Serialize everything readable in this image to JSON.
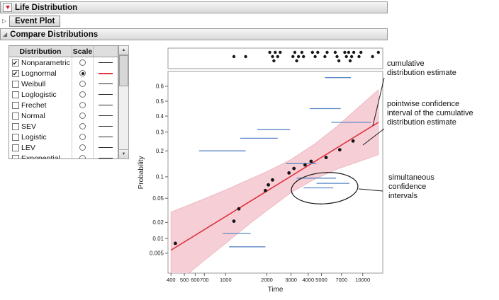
{
  "icons": {
    "red_triangle_menu": "red-triangle",
    "disclosure_open": "◢",
    "disclosure_closed": "▷",
    "checkbox_check": "✔",
    "scrollbar_up": "▲",
    "scrollbar_down": "▼"
  },
  "colors": {
    "header_gradient_top": "#f6f6f6",
    "header_gradient_bottom": "#d8d8d8",
    "fit_line_red": "#e03540",
    "band_pink": "#f6cfd6",
    "interval_blue": "#5b87c5",
    "red_triangle": "#cf1f25"
  },
  "window": {
    "outline_headers": [
      {
        "title": "Life Distribution",
        "state": "open"
      },
      {
        "title": "Event Plot",
        "state": "closed"
      },
      {
        "title": "Compare Distributions",
        "state": "open"
      }
    ]
  },
  "distribution_table": {
    "column_headers": [
      "Distribution",
      "Scale"
    ],
    "rows": [
      {
        "label": "Nonparametric",
        "checked": true,
        "scale_selected": false,
        "swatch_color": "#2b2b2b"
      },
      {
        "label": "Lognormal",
        "checked": true,
        "scale_selected": true,
        "swatch_color": "#e03540"
      },
      {
        "label": "Weibull",
        "checked": false,
        "scale_selected": false,
        "swatch_color": "#2b2b2b"
      },
      {
        "label": "Loglogistic",
        "checked": false,
        "scale_selected": false,
        "swatch_color": "#2b2b2b"
      },
      {
        "label": "Frechet",
        "checked": false,
        "scale_selected": false,
        "swatch_color": "#2b2b2b"
      },
      {
        "label": "Normal",
        "checked": false,
        "scale_selected": false,
        "swatch_color": "#2b2b2b"
      },
      {
        "label": "SEV",
        "checked": false,
        "scale_selected": false,
        "swatch_color": "#2b2b2b"
      },
      {
        "label": "Logistic",
        "checked": false,
        "scale_selected": false,
        "swatch_color": "#2b2b2b"
      },
      {
        "label": "LEV",
        "checked": false,
        "scale_selected": false,
        "swatch_color": "#2b2b2b"
      },
      {
        "label": "Exponential",
        "checked": false,
        "scale_selected": false,
        "swatch_color": "#2b2b2b"
      }
    ]
  },
  "chart_data": {
    "type": "scatter",
    "subtype": "probability-plot-with-event-strip",
    "title": "",
    "xlabel": "Time",
    "ylabel": "Probability",
    "x_scale": "log",
    "y_scale": "normal-quantile",
    "x_range": [
      380,
      14000
    ],
    "x_ticks": [
      400,
      500,
      600,
      700,
      1000,
      2000,
      3000,
      4000,
      5000,
      7000,
      10000
    ],
    "y_ticks": [
      "0.6",
      "0.5",
      "0.4",
      "0.3",
      "0.2",
      "0.1",
      "0.05",
      "0.02",
      "0.01",
      "0.005"
    ],
    "fit_line": {
      "label": "Lognormal cumulative distribution estimate",
      "color": "#e03540",
      "points": [
        [
          400,
          0.0058
        ],
        [
          13000,
          0.36
        ]
      ]
    },
    "confidence_band": {
      "label": "pointwise confidence interval of the cumulative distribution estimate",
      "color": "#f6cfd6",
      "upper": [
        [
          400,
          0.03
        ],
        [
          700,
          0.049
        ],
        [
          1000,
          0.066
        ],
        [
          1500,
          0.093
        ],
        [
          2000,
          0.116
        ],
        [
          3000,
          0.161
        ],
        [
          4500,
          0.236
        ],
        [
          6500,
          0.334
        ],
        [
          9000,
          0.446
        ],
        [
          13000,
          0.576
        ]
      ],
      "lower": [
        [
          400,
          0.0008
        ],
        [
          700,
          0.0035
        ],
        [
          1000,
          0.008
        ],
        [
          1500,
          0.019
        ],
        [
          2000,
          0.032
        ],
        [
          3000,
          0.061
        ],
        [
          4500,
          0.094
        ],
        [
          6500,
          0.125
        ],
        [
          9000,
          0.15
        ],
        [
          13000,
          0.182
        ]
      ]
    },
    "interval_color": "#5b87c5",
    "simultaneous_intervals": [
      [
        640,
        1400,
        0.2
      ],
      [
        1280,
        2400,
        0.265
      ],
      [
        1700,
        2950,
        0.315
      ],
      [
        2750,
        4600,
        0.145
      ],
      [
        5300,
        8200,
        0.655
      ],
      [
        4100,
        6900,
        0.45
      ],
      [
        5900,
        11500,
        0.36
      ],
      [
        3300,
        6400,
        0.096
      ],
      [
        4600,
        8000,
        0.082
      ],
      [
        3700,
        6100,
        0.071
      ],
      [
        950,
        1520,
        0.0125
      ],
      [
        1060,
        1950,
        0.0068
      ]
    ],
    "nonparametric_points": [
      [
        430,
        0.008
      ],
      [
        1150,
        0.021
      ],
      [
        1250,
        0.034
      ],
      [
        1950,
        0.065
      ],
      [
        2050,
        0.078
      ],
      [
        2200,
        0.091
      ],
      [
        2900,
        0.112
      ],
      [
        3150,
        0.127
      ],
      [
        3800,
        0.14
      ],
      [
        4200,
        0.154
      ],
      [
        5400,
        0.17
      ],
      [
        6800,
        0.205
      ],
      [
        8500,
        0.25
      ]
    ],
    "event_plot_points": [
      [
        1150,
        1
      ],
      [
        1400,
        1
      ],
      [
        2100,
        0
      ],
      [
        2200,
        1
      ],
      [
        2250,
        2
      ],
      [
        2300,
        0
      ],
      [
        2400,
        1
      ],
      [
        2500,
        0
      ],
      [
        3100,
        1
      ],
      [
        3200,
        0
      ],
      [
        3300,
        2
      ],
      [
        3400,
        1
      ],
      [
        3600,
        0
      ],
      [
        3700,
        1
      ],
      [
        4300,
        0
      ],
      [
        4500,
        1
      ],
      [
        4700,
        0
      ],
      [
        5300,
        1
      ],
      [
        5500,
        0
      ],
      [
        6300,
        0
      ],
      [
        6500,
        1
      ],
      [
        6700,
        2
      ],
      [
        7400,
        0
      ],
      [
        7600,
        1
      ],
      [
        7900,
        0
      ],
      [
        8100,
        2
      ],
      [
        8300,
        1
      ],
      [
        8600,
        0
      ],
      [
        9400,
        1
      ],
      [
        9700,
        0
      ],
      [
        11800,
        1
      ],
      [
        13000,
        0
      ]
    ]
  },
  "annotations": {
    "cumulative": {
      "lines": [
        "cumulative",
        "distribution estimate"
      ]
    },
    "pointwise": {
      "lines": [
        "pointwise confidence",
        "interval of the cumulative",
        "distribution estimate"
      ]
    },
    "simultaneous": {
      "lines": [
        "simultaneous",
        "confidence",
        "intervals"
      ]
    }
  }
}
